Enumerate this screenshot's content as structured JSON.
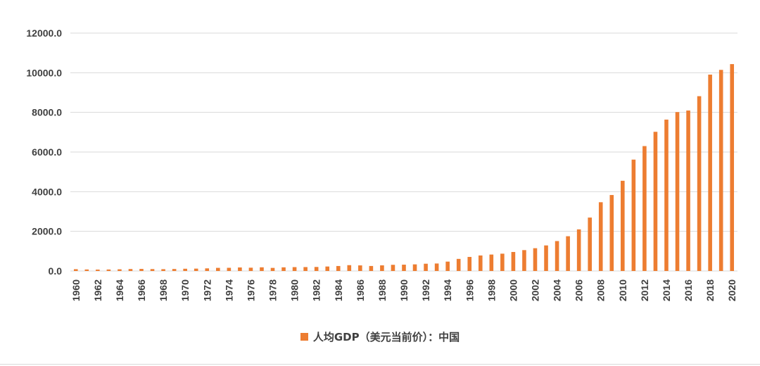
{
  "chart_data": {
    "type": "bar",
    "categories": [
      "1960",
      "1961",
      "1962",
      "1963",
      "1964",
      "1965",
      "1966",
      "1967",
      "1968",
      "1969",
      "1970",
      "1971",
      "1972",
      "1973",
      "1974",
      "1975",
      "1976",
      "1977",
      "1978",
      "1979",
      "1980",
      "1981",
      "1982",
      "1983",
      "1984",
      "1985",
      "1986",
      "1987",
      "1988",
      "1989",
      "1990",
      "1991",
      "1992",
      "1993",
      "1994",
      "1995",
      "1996",
      "1997",
      "1998",
      "1999",
      "2000",
      "2001",
      "2002",
      "2003",
      "2004",
      "2005",
      "2006",
      "2007",
      "2008",
      "2009",
      "2010",
      "2011",
      "2012",
      "2013",
      "2014",
      "2015",
      "2016",
      "2017",
      "2018",
      "2019",
      "2020"
    ],
    "xtick_labels": [
      "1960",
      "1962",
      "1964",
      "1966",
      "1968",
      "1970",
      "1972",
      "1974",
      "1976",
      "1978",
      "1980",
      "1982",
      "1984",
      "1986",
      "1988",
      "1990",
      "1992",
      "1994",
      "1996",
      "1998",
      "2000",
      "2002",
      "2004",
      "2006",
      "2008",
      "2010",
      "2012",
      "2014",
      "2016",
      "2018",
      "2020"
    ],
    "series": [
      {
        "name": "人均GDP（美元当前价）：中国",
        "color": "#ED7D31",
        "values": [
          90,
          76,
          70,
          75,
          85,
          98,
          104,
          96,
          91,
          100,
          113,
          119,
          132,
          157,
          160,
          178,
          165,
          185,
          156,
          184,
          195,
          197,
          203,
          225,
          251,
          294,
          282,
          252,
          284,
          311,
          318,
          333,
          366,
          377,
          473,
          610,
          709,
          782,
          829,
          873,
          959,
          1053,
          1149,
          1289,
          1509,
          1753,
          2099,
          2694,
          3468,
          3832,
          4550,
          5618,
          6300,
          7020,
          7636,
          8016,
          8094,
          8817,
          9905,
          10144,
          10435
        ]
      }
    ],
    "ylim": [
      0,
      12000
    ],
    "yticks": [
      "0.0",
      "2000.0",
      "4000.0",
      "6000.0",
      "8000.0",
      "10000.0",
      "12000.0"
    ],
    "xlabel": "",
    "ylabel": "",
    "title": "",
    "grid": "horizontal",
    "legend_position": "bottom"
  }
}
